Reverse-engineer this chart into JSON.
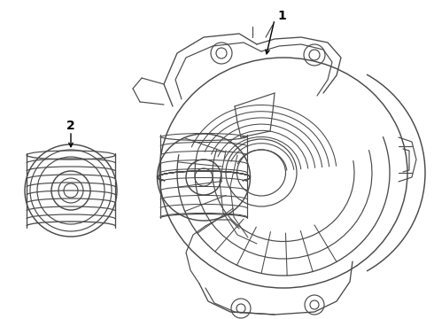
{
  "bg_color": "#ffffff",
  "line_color": "#4a4a4a",
  "label_color": "#000000",
  "lw": 0.85,
  "label1": "1",
  "label2": "2",
  "fig_w": 4.9,
  "fig_h": 3.6,
  "dpi": 100,
  "img_xlim": [
    0,
    490
  ],
  "img_ylim": [
    0,
    360
  ]
}
